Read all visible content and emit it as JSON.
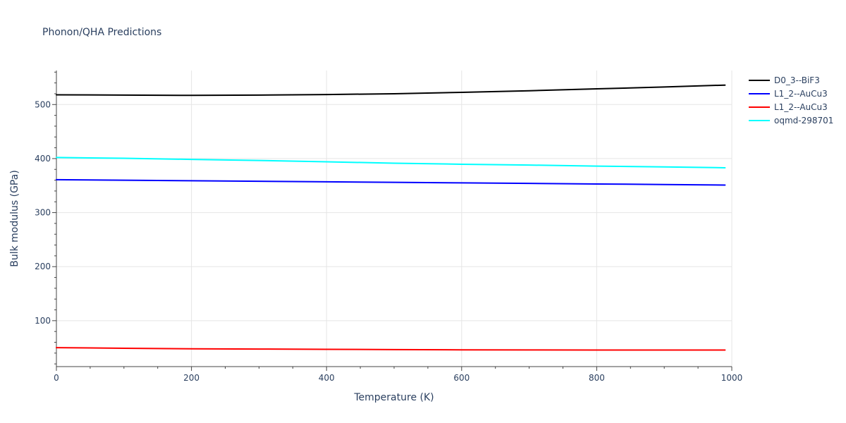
{
  "chart_data": {
    "type": "line",
    "title": "Phonon/QHA Predictions",
    "xlabel": "Temperature (K)",
    "ylabel": "Bulk modulus (GPa)",
    "xlim": [
      0,
      1000
    ],
    "ylim": [
      15,
      563
    ],
    "x_ticks": [
      0,
      200,
      400,
      600,
      800,
      1000
    ],
    "y_ticks": [
      100,
      200,
      300,
      400,
      500
    ],
    "grid": true,
    "legend_position": "top-right",
    "series": [
      {
        "name": "D0_3--BiF3",
        "color": "#000000",
        "x": [
          0,
          100,
          200,
          300,
          400,
          500,
          600,
          700,
          800,
          900,
          990
        ],
        "y": [
          518,
          517.5,
          517,
          517.5,
          518.5,
          520,
          522.5,
          525.5,
          529,
          532.5,
          536
        ]
      },
      {
        "name": "L1_2--AuCu3",
        "color": "#0000ff",
        "x": [
          0,
          100,
          200,
          300,
          400,
          500,
          600,
          700,
          800,
          900,
          990
        ],
        "y": [
          361,
          360,
          359,
          358,
          357,
          356,
          355,
          354,
          353,
          352,
          351
        ]
      },
      {
        "name": "L1_2--AuCu3",
        "color": "#ff0000",
        "x": [
          0,
          100,
          200,
          300,
          400,
          500,
          600,
          700,
          800,
          900,
          990
        ],
        "y": [
          50,
          49,
          48,
          47.5,
          47,
          46.5,
          46,
          45.8,
          45.6,
          45.6,
          45.6
        ]
      },
      {
        "name": "oqmd-298701",
        "color": "#00ffff",
        "x": [
          0,
          100,
          200,
          300,
          400,
          500,
          600,
          700,
          800,
          900,
          990
        ],
        "y": [
          402,
          400.5,
          398.5,
          396.5,
          394,
          391.5,
          389.5,
          388,
          386,
          384.5,
          383
        ]
      }
    ]
  }
}
